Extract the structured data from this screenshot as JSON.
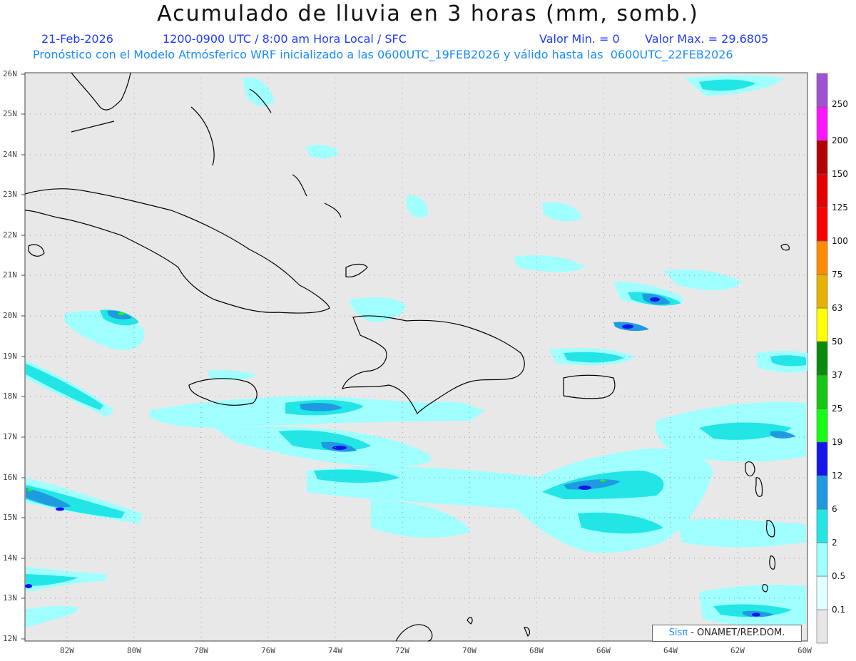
{
  "header": {
    "title": "Acumulado de lluvia en 3 horas (mm, somb.)",
    "date": "21-Feb-2026",
    "period": "1200-0900 UTC / 8:00 am Hora Local / SFC",
    "min": "Valor Min. = 0",
    "max": "Valor Max. = 29.6805",
    "model_line": "Pronóstico con el Modelo Atmósferico WRF inicializado a las 0600UTC_19FEB2026 y válido hasta las  0600UTC_22FEB2026"
  },
  "map": {
    "lat_labels": [
      "26N",
      "25N",
      "24N",
      "23N",
      "22N",
      "21N",
      "20N",
      "19N",
      "18N",
      "17N",
      "16N",
      "15N",
      "14N",
      "13N",
      "12N"
    ],
    "lon_labels": [
      "82W",
      "80W",
      "78W",
      "76W",
      "74W",
      "72W",
      "70W",
      "68W",
      "66W",
      "64W",
      "62W",
      "60W"
    ],
    "colors": {
      "land_sea": "#e8e8e8",
      "grid": "#9a9a9a",
      "coast": "#000000"
    }
  },
  "colorbar": {
    "labels": [
      "0.1",
      "0.5",
      "2",
      "6",
      "12",
      "19",
      "25",
      "37",
      "50",
      "63",
      "75",
      "100",
      "125",
      "150",
      "200",
      "250"
    ],
    "colors": [
      "#e6e6e6",
      "#e0ffff",
      "#a0ffff",
      "#22e6e6",
      "#1e9be0",
      "#1414f0",
      "#14ff14",
      "#14c814",
      "#0a8c0a",
      "#ffff00",
      "#e6b400",
      "#ff8c00",
      "#ff0000",
      "#e60000",
      "#b40000",
      "#ff14ff",
      "#a050d0"
    ]
  },
  "credit": {
    "brand": "Sisπ",
    "text": " - ONAMET/REP.DOM."
  }
}
